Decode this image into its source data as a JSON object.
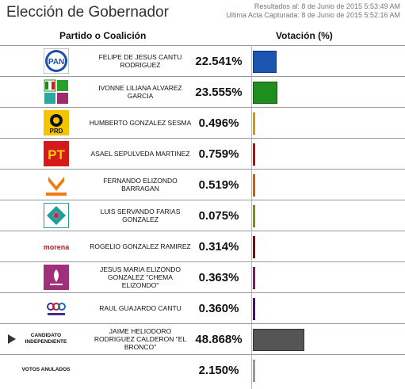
{
  "title": "Elección de Gobernador",
  "results_line": "Resultados al: 8 de Junio de 2015 5:53:49 AM",
  "last_act_line": "Ultima Acta Capturada: 8 de Junio de 2015 5:52:16 AM",
  "col_left": "Partido o Coalición",
  "col_right": "Votación (%)",
  "rows": [
    {
      "name": "FELIPE DE JESUS CANTU RODRIGUEZ",
      "pct": "22.541%",
      "value": 22.541,
      "color": "#1b55b0",
      "border": "#0d3a80",
      "logo": "PAN"
    },
    {
      "name": "IVONNE LILIANA ALVAREZ GARCIA",
      "pct": "23.555%",
      "value": 23.555,
      "color": "#1e8f1e",
      "border": "#0f5c0f",
      "logo": "PRI-PVEM"
    },
    {
      "name": "HUMBERTO GONZALEZ SESMA",
      "pct": "0.496%",
      "value": 0.496,
      "color": "#f4c21a",
      "border": "#b08a10",
      "logo": "PRD"
    },
    {
      "name": "ASAEL SEPULVEDA MARTINEZ",
      "pct": "0.759%",
      "value": 0.759,
      "color": "#d21b1b",
      "border": "#8a1010",
      "logo": "PT"
    },
    {
      "name": "FERNANDO ELIZONDO BARRAGAN",
      "pct": "0.519%",
      "value": 0.519,
      "color": "#f07c14",
      "border": "#a8560c",
      "logo": "MOVIMIENTO CIUDADANO"
    },
    {
      "name": "LUIS SERVANDO FARIAS GONZALEZ",
      "pct": "0.075%",
      "value": 0.075,
      "color": "#9db22a",
      "border": "#6a7a18",
      "logo": "NUEVA ALIANZA"
    },
    {
      "name": "ROGELIO GONZALEZ RAMIREZ",
      "pct": "0.314%",
      "value": 0.314,
      "color": "#8a1a1a",
      "border": "#5a0f0f",
      "logo": "morena"
    },
    {
      "name": "JESUS MARIA ELIZONDO GONZALEZ \"CHEMA ELIZONDO\"",
      "pct": "0.363%",
      "value": 0.363,
      "color": "#9a2a7a",
      "border": "#601850",
      "logo": "HUMANISTA"
    },
    {
      "name": "RAUL GUAJARDO CANTU",
      "pct": "0.360%",
      "value": 0.36,
      "color": "#5a1a8a",
      "border": "#3a0f5c",
      "logo": "ENCUENTRO SOCIAL"
    },
    {
      "name": "JAIME HELIODORO RODRIGUEZ CALDERON \"EL BRONCO\"",
      "pct": "48.868%",
      "value": 48.868,
      "color": "#555555",
      "border": "#333333",
      "logo": "CANDIDATO INDEPENDIENTE"
    },
    {
      "name": "",
      "pct": "2.150%",
      "value": 2.15,
      "color": "#bfbfbf",
      "border": "#888888",
      "logo": "VOTOS ANULADOS"
    }
  ]
}
